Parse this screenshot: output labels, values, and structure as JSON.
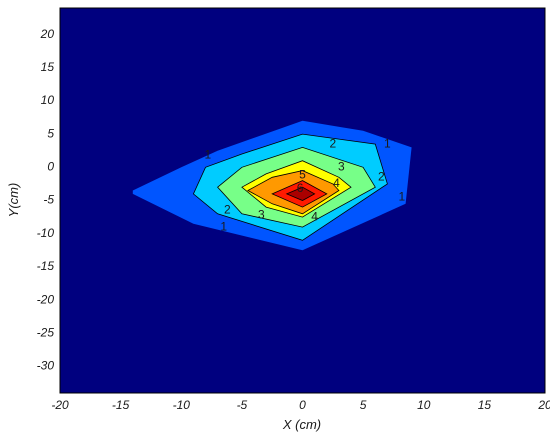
{
  "chart_data": {
    "type": "contour",
    "title": "",
    "xlabel": "X (cm)",
    "ylabel": "Y(cm)",
    "xlim": [
      -20,
      20
    ],
    "ylim": [
      -34,
      24
    ],
    "xticks": [
      -20,
      -15,
      -10,
      -5,
      0,
      5,
      10,
      15,
      20
    ],
    "yticks": [
      20,
      15,
      10,
      5,
      0,
      -5,
      -10,
      -15,
      -20,
      -25,
      -30
    ],
    "grid": false,
    "background_color": "#00007f",
    "levels": [
      {
        "level": 1,
        "color": "#0055ff",
        "points": [
          [
            -14,
            -3.5
          ],
          [
            -10,
            0
          ],
          [
            -7,
            2.5
          ],
          [
            0,
            7
          ],
          [
            5,
            5.5
          ],
          [
            9,
            3
          ],
          [
            8.5,
            -5.5
          ],
          [
            0,
            -12.5
          ],
          [
            -9,
            -8.5
          ],
          [
            -14,
            -4
          ]
        ],
        "labels": [
          {
            "text": "1",
            "x": -7.8,
            "y": 1.8
          },
          {
            "text": "1",
            "x": 7.0,
            "y": 3.5
          },
          {
            "text": "1",
            "x": -6.5,
            "y": -9.0
          },
          {
            "text": "1",
            "x": 8.2,
            "y": -4.5
          }
        ]
      },
      {
        "level": 2,
        "color": "#00ccff",
        "points": [
          [
            -9,
            -4
          ],
          [
            -8,
            0
          ],
          [
            -5,
            2
          ],
          [
            0,
            5
          ],
          [
            6,
            3.5
          ],
          [
            7,
            -2.5
          ],
          [
            0,
            -11
          ],
          [
            -7,
            -7
          ]
        ],
        "labels": [
          {
            "text": "2",
            "x": 2.5,
            "y": 3.5
          },
          {
            "text": "2",
            "x": -6.2,
            "y": -6.5
          },
          {
            "text": "2",
            "x": 6.5,
            "y": -1.5
          }
        ]
      },
      {
        "level": 3,
        "color": "#77ff88",
        "points": [
          [
            -7,
            -3
          ],
          [
            -5,
            0
          ],
          [
            0,
            3
          ],
          [
            5,
            0
          ],
          [
            6,
            -3
          ],
          [
            0,
            -9
          ],
          [
            -5,
            -7
          ]
        ],
        "labels": [
          {
            "text": "3",
            "x": 3.2,
            "y": 0.0
          },
          {
            "text": "3",
            "x": -3.4,
            "y": -7.2
          }
        ]
      },
      {
        "level": 4,
        "color": "#ffff00",
        "points": [
          [
            -5,
            -3
          ],
          [
            -3,
            -1
          ],
          [
            0,
            1
          ],
          [
            3,
            -1.5
          ],
          [
            4,
            -3
          ],
          [
            0,
            -7.5
          ],
          [
            -3,
            -6
          ]
        ],
        "labels": [
          {
            "text": "4",
            "x": 2.8,
            "y": -2.5
          },
          {
            "text": "4",
            "x": 1.0,
            "y": -7.5
          }
        ]
      },
      {
        "level": 5,
        "color": "#ff9900",
        "points": [
          [
            -4.5,
            -3.5
          ],
          [
            -2.5,
            -1.5
          ],
          [
            0,
            -0.5
          ],
          [
            2.5,
            -2.5
          ],
          [
            3,
            -3.5
          ],
          [
            0,
            -7
          ],
          [
            -2.5,
            -5.5
          ]
        ],
        "labels": [
          {
            "text": "5",
            "x": 0.0,
            "y": -1.2
          }
        ]
      },
      {
        "level": 6,
        "color": "#ff1a00",
        "points": [
          [
            -2.5,
            -4
          ],
          [
            0,
            -2
          ],
          [
            2,
            -4
          ],
          [
            0,
            -6
          ]
        ],
        "labels": [
          {
            "text": "6",
            "x": -0.2,
            "y": -3.2
          }
        ]
      },
      {
        "level": 7,
        "color": "#aa0000",
        "points": [
          [
            -1.3,
            -4
          ],
          [
            0,
            -3
          ],
          [
            1,
            -4
          ],
          [
            0,
            -5
          ]
        ],
        "labels": []
      }
    ]
  }
}
